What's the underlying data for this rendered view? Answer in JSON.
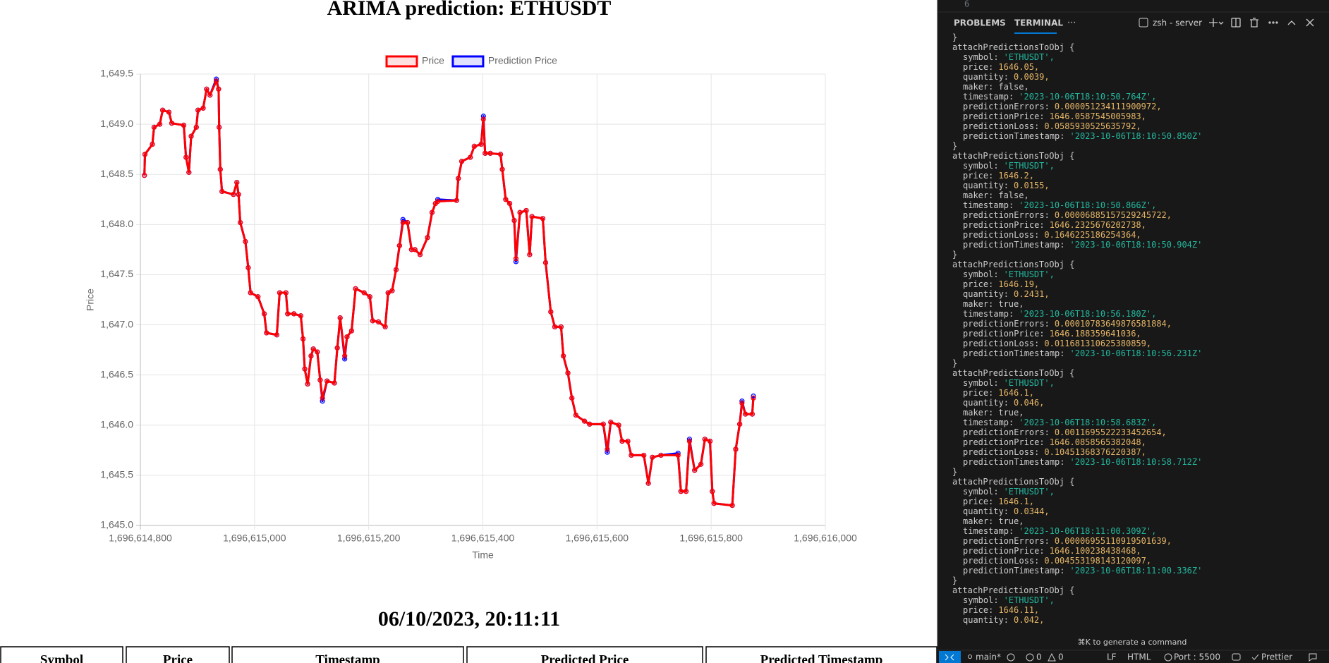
{
  "page": {
    "title": "ARIMA prediction: ETHUSDT",
    "clock": "06/10/2023, 20:11:11",
    "table": {
      "headers": [
        "Symbol",
        "Price",
        "Timestamp",
        "Predicted Price",
        "Predicted Timestamp"
      ]
    }
  },
  "chart_data": {
    "type": "line",
    "x_label": "Time",
    "y_label": "Price",
    "grid": true,
    "legend": "top",
    "xlim": [
      1696614800,
      1696616000
    ],
    "xticks": [
      {
        "value": 1696614800,
        "label": "1,696,614,800"
      },
      {
        "value": 1696615000,
        "label": "1,696,615,000"
      },
      {
        "value": 1696615200,
        "label": "1,696,615,200"
      },
      {
        "value": 1696615400,
        "label": "1,696,615,400"
      },
      {
        "value": 1696615600,
        "label": "1,696,615,600"
      },
      {
        "value": 1696615800,
        "label": "1,696,615,800"
      },
      {
        "value": 1696616000,
        "label": "1,696,616,000"
      }
    ],
    "ylim": [
      1645.0,
      1649.5
    ],
    "yticks": [
      {
        "value": 1645.0,
        "label": "1,645.0"
      },
      {
        "value": 1645.5,
        "label": "1,645.5"
      },
      {
        "value": 1646.0,
        "label": "1,646.0"
      },
      {
        "value": 1646.5,
        "label": "1,646.5"
      },
      {
        "value": 1647.0,
        "label": "1,647.0"
      },
      {
        "value": 1647.5,
        "label": "1,647.5"
      },
      {
        "value": 1648.0,
        "label": "1,648.0"
      },
      {
        "value": 1648.5,
        "label": "1,648.5"
      },
      {
        "value": 1649.0,
        "label": "1,649.0"
      },
      {
        "value": 1649.5,
        "label": "1,649.5"
      }
    ],
    "x": [
      1696614807,
      1696614808,
      1696614821,
      1696614824,
      1696614834,
      1696614839,
      1696614850,
      1696614855,
      1696614876,
      1696614880,
      1696614885,
      1696614889,
      1696614898,
      1696614901,
      1696614910,
      1696614916,
      1696614922,
      1696614933,
      1696614937,
      1696614938,
      1696614940,
      1696614943,
      1696614963,
      1696614969,
      1696614972,
      1696614975,
      1696614984,
      1696614989,
      1696614993,
      1696615006,
      1696615017,
      1696615021,
      1696615039,
      1696615044,
      1696615055,
      1696615058,
      1696615069,
      1696615081,
      1696615085,
      1696615088,
      1696615093,
      1696615099,
      1696615103,
      1696615110,
      1696615115,
      1696615119,
      1696615127,
      1696615140,
      1696615145,
      1696615150,
      1696615158,
      1696615162,
      1696615170,
      1696615177,
      1696615192,
      1696615202,
      1696615207,
      1696615217,
      1696615229,
      1696615234,
      1696615241,
      1696615248,
      1696615254,
      1696615260,
      1696615268,
      1696615275,
      1696615281,
      1696615290,
      1696615303,
      1696615311,
      1696615317,
      1696615321,
      1696615354,
      1696615357,
      1696615363,
      1696615378,
      1696615385,
      1696615397,
      1696615401,
      1696615404,
      1696615413,
      1696615431,
      1696615434,
      1696615440,
      1696615447,
      1696615455,
      1696615458,
      1696615465,
      1696615476,
      1696615482,
      1696615486,
      1696615505,
      1696615510,
      1696615519,
      1696615526,
      1696615537,
      1696615541,
      1696615549,
      1696615556,
      1696615563,
      1696615578,
      1696615587,
      1696615611,
      1696615618,
      1696615624,
      1696615638,
      1696615644,
      1696615654,
      1696615660,
      1696615682,
      1696615690,
      1696615697,
      1696615712,
      1696615742,
      1696615747,
      1696615756,
      1696615762,
      1696615771,
      1696615782,
      1696615789,
      1696615798,
      1696615802,
      1696615805,
      1696615837,
      1696615843,
      1696615850,
      1696615854,
      1696615860,
      1696615872,
      1696615874
    ],
    "series": [
      {
        "name": "Prediction Price",
        "color": "#0000ff",
        "values": [
          1648.49,
          1648.7,
          1648.8,
          1648.97,
          1649.0,
          1649.14,
          1649.12,
          1649.01,
          1648.99,
          1648.67,
          1648.52,
          1648.88,
          1648.97,
          1649.14,
          1649.16,
          1649.35,
          1649.29,
          1649.45,
          1649.35,
          1648.97,
          1648.55,
          1648.33,
          1648.3,
          1648.42,
          1648.3,
          1648.02,
          1647.83,
          1647.57,
          1647.32,
          1647.28,
          1647.11,
          1646.92,
          1646.9,
          1647.32,
          1647.32,
          1647.11,
          1647.11,
          1647.09,
          1646.86,
          1646.56,
          1646.41,
          1646.69,
          1646.76,
          1646.73,
          1646.45,
          1646.24,
          1646.44,
          1646.42,
          1646.77,
          1647.07,
          1646.66,
          1646.88,
          1646.94,
          1647.36,
          1647.32,
          1647.28,
          1647.04,
          1647.03,
          1646.98,
          1647.32,
          1647.34,
          1647.55,
          1647.79,
          1648.05,
          1648.02,
          1647.75,
          1647.75,
          1647.7,
          1647.87,
          1648.12,
          1648.21,
          1648.25,
          1648.24,
          1648.46,
          1648.63,
          1648.67,
          1648.78,
          1648.8,
          1649.08,
          1648.71,
          1648.71,
          1648.7,
          1648.55,
          1648.25,
          1648.21,
          1648.04,
          1647.63,
          1648.12,
          1648.14,
          1647.7,
          1648.08,
          1648.06,
          1647.62,
          1647.13,
          1646.98,
          1646.98,
          1646.69,
          1646.52,
          1646.27,
          1646.1,
          1646.04,
          1646.01,
          1646.01,
          1645.73,
          1646.03,
          1646.0,
          1645.84,
          1645.84,
          1645.7,
          1645.7,
          1645.42,
          1645.68,
          1645.7,
          1645.72,
          1645.34,
          1645.34,
          1645.86,
          1645.55,
          1645.61,
          1645.86,
          1645.84,
          1645.34,
          1645.22,
          1645.2,
          1645.76,
          1646.01,
          1646.24,
          1646.11,
          1646.11,
          1646.29
        ]
      },
      {
        "name": "Price",
        "color": "#ff0000",
        "values": [
          1648.49,
          1648.7,
          1648.8,
          1648.97,
          1649.0,
          1649.14,
          1649.12,
          1649.01,
          1648.99,
          1648.67,
          1648.52,
          1648.88,
          1648.97,
          1649.14,
          1649.16,
          1649.35,
          1649.29,
          1649.43,
          1649.35,
          1648.97,
          1648.55,
          1648.33,
          1648.3,
          1648.42,
          1648.3,
          1648.02,
          1647.83,
          1647.57,
          1647.32,
          1647.28,
          1647.11,
          1646.92,
          1646.9,
          1647.32,
          1647.32,
          1647.11,
          1647.11,
          1647.09,
          1646.86,
          1646.56,
          1646.41,
          1646.69,
          1646.76,
          1646.73,
          1646.45,
          1646.27,
          1646.44,
          1646.42,
          1646.77,
          1647.07,
          1646.69,
          1646.88,
          1646.94,
          1647.36,
          1647.32,
          1647.28,
          1647.04,
          1647.03,
          1646.98,
          1647.32,
          1647.34,
          1647.55,
          1647.79,
          1648.02,
          1648.02,
          1647.75,
          1647.75,
          1647.7,
          1647.87,
          1648.12,
          1648.21,
          1648.23,
          1648.24,
          1648.46,
          1648.63,
          1648.67,
          1648.78,
          1648.8,
          1649.05,
          1648.71,
          1648.71,
          1648.7,
          1648.55,
          1648.25,
          1648.21,
          1648.04,
          1647.66,
          1648.12,
          1648.14,
          1647.7,
          1648.08,
          1648.06,
          1647.62,
          1647.13,
          1646.98,
          1646.98,
          1646.69,
          1646.52,
          1646.27,
          1646.1,
          1646.04,
          1646.01,
          1646.01,
          1645.76,
          1646.03,
          1646.0,
          1645.84,
          1645.84,
          1645.7,
          1645.7,
          1645.42,
          1645.68,
          1645.7,
          1645.7,
          1645.34,
          1645.34,
          1645.84,
          1645.55,
          1645.61,
          1645.86,
          1645.84,
          1645.34,
          1645.22,
          1645.2,
          1645.76,
          1646.01,
          1646.22,
          1646.11,
          1646.11,
          1646.27
        ]
      }
    ]
  },
  "editor": {
    "line_number": "6",
    "tabs": [
      "PROBLEMS",
      "TERMINAL",
      "···"
    ],
    "shell": "zsh - server",
    "hint": "⌘K to generate a command",
    "terminal": [
      [
        "}"
      ],
      [
        "attachPredictionsToObj {"
      ],
      [
        "symbol:",
        "'ETHUSDT',"
      ],
      [
        "price:",
        "1646.05,"
      ],
      [
        "quantity:",
        "0.0039,"
      ],
      [
        "maker:",
        "false,"
      ],
      [
        "timestamp:",
        "'2023-10-06T18:10:50.764Z',"
      ],
      [
        "predictionErrors:",
        "0.000051234111900972,"
      ],
      [
        "predictionPrice:",
        "1646.0587545005983,"
      ],
      [
        "predictionLoss:",
        "0.0585930525635792,"
      ],
      [
        "predictionTimestamp:",
        "'2023-10-06T18:10:50.850Z'"
      ],
      [
        "}"
      ],
      [
        "attachPredictionsToObj {"
      ],
      [
        "symbol:",
        "'ETHUSDT',"
      ],
      [
        "price:",
        "1646.2,"
      ],
      [
        "quantity:",
        "0.0155,"
      ],
      [
        "maker:",
        "false,"
      ],
      [
        "timestamp:",
        "'2023-10-06T18:10:50.866Z',"
      ],
      [
        "predictionErrors:",
        "0.00006885157529245722,"
      ],
      [
        "predictionPrice:",
        "1646.2325676202738,"
      ],
      [
        "predictionLoss:",
        "0.1646225186254364,"
      ],
      [
        "predictionTimestamp:",
        "'2023-10-06T18:10:50.904Z'"
      ],
      [
        "}"
      ],
      [
        "attachPredictionsToObj {"
      ],
      [
        "symbol:",
        "'ETHUSDT',"
      ],
      [
        "price:",
        "1646.19,"
      ],
      [
        "quantity:",
        "0.2431,"
      ],
      [
        "maker:",
        "true,"
      ],
      [
        "timestamp:",
        "'2023-10-06T18:10:56.180Z',"
      ],
      [
        "predictionErrors:",
        "0.00010783649876581884,"
      ],
      [
        "predictionPrice:",
        "1646.188359641036,"
      ],
      [
        "predictionLoss:",
        "0.011681310625380859,"
      ],
      [
        "predictionTimestamp:",
        "'2023-10-06T18:10:56.231Z'"
      ],
      [
        "}"
      ],
      [
        "attachPredictionsToObj {"
      ],
      [
        "symbol:",
        "'ETHUSDT',"
      ],
      [
        "price:",
        "1646.1,"
      ],
      [
        "quantity:",
        "0.046,"
      ],
      [
        "maker:",
        "true,"
      ],
      [
        "timestamp:",
        "'2023-10-06T18:10:58.683Z',"
      ],
      [
        "predictionErrors:",
        "0.0011695522233452654,"
      ],
      [
        "predictionPrice:",
        "1646.0858565382048,"
      ],
      [
        "predictionLoss:",
        "0.10451368376220387,"
      ],
      [
        "predictionTimestamp:",
        "'2023-10-06T18:10:58.712Z'"
      ],
      [
        "}"
      ],
      [
        "attachPredictionsToObj {"
      ],
      [
        "symbol:",
        "'ETHUSDT',"
      ],
      [
        "price:",
        "1646.1,"
      ],
      [
        "quantity:",
        "0.0344,"
      ],
      [
        "maker:",
        "true,"
      ],
      [
        "timestamp:",
        "'2023-10-06T18:11:00.309Z',"
      ],
      [
        "predictionErrors:",
        "0.00006955110919501639,"
      ],
      [
        "predictionPrice:",
        "1646.100238438468,"
      ],
      [
        "predictionLoss:",
        "0.004553198143120097,"
      ],
      [
        "predictionTimestamp:",
        "'2023-10-06T18:11:00.336Z'"
      ],
      [
        "}"
      ],
      [
        "attachPredictionsToObj {"
      ],
      [
        "symbol:",
        "'ETHUSDT',"
      ],
      [
        "price:",
        "1646.11,"
      ],
      [
        "quantity:",
        "0.042,"
      ]
    ],
    "status": {
      "branch": "main*",
      "errors": "0",
      "warnings": "0",
      "eol": "LF",
      "language": "HTML",
      "port": "Port : 5500",
      "formatter": "Prettier"
    }
  }
}
